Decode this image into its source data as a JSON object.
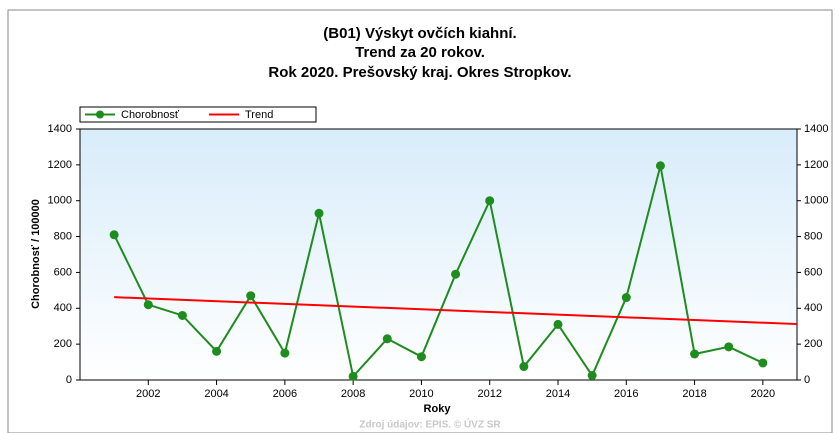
{
  "chart_data": {
    "type": "line",
    "title": [
      "(B01) Výskyt ovčích kiahní.",
      "Trend za 20 rokov.",
      "Rok 2020. Prešovský kraj. Okres Stropkov."
    ],
    "x_label": "Roky",
    "y_label": "Chorobnosť / 100000",
    "source": "Zdroj údajov: EPIS. © ÚVZ SR",
    "x": [
      2001,
      2002,
      2003,
      2004,
      2005,
      2006,
      2007,
      2008,
      2009,
      2010,
      2011,
      2012,
      2013,
      2014,
      2015,
      2016,
      2017,
      2018,
      2019,
      2020
    ],
    "series": [
      {
        "name": "Chorobnosť",
        "color": "#1e8c1e",
        "values": [
          810,
          420,
          360,
          160,
          470,
          150,
          930,
          20,
          230,
          130,
          590,
          1000,
          75,
          310,
          25,
          460,
          1195,
          145,
          185,
          95
        ]
      },
      {
        "name": "Trend",
        "color": "#ff0000",
        "x": [
          2001,
          2021
        ],
        "values": [
          462,
          312
        ]
      }
    ],
    "xlim": [
      2000,
      2021
    ],
    "xticks": [
      2002,
      2004,
      2006,
      2008,
      2010,
      2012,
      2014,
      2016,
      2018,
      2020
    ],
    "ylim": [
      0,
      1400
    ],
    "yticks": [
      0,
      200,
      400,
      600,
      800,
      1000,
      1200,
      1400
    ],
    "legend": "top-left",
    "grid": false
  }
}
